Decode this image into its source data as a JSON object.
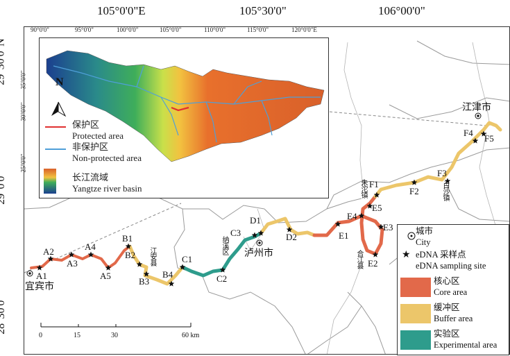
{
  "coords": {
    "top": [
      "105°0'0\"E",
      "105°30'0\"",
      "106°00'0\""
    ],
    "left": [
      "29°30'0\"N",
      "29°0'0\"",
      "28°30'0\""
    ]
  },
  "inset": {
    "lon_labels": [
      "90°0'0\"",
      "95°0'0\"",
      "100°0'0\"",
      "105°0'0\"",
      "110°0'0\"",
      "115°0'0\"",
      "120°0'0\"E"
    ],
    "lat_labels": [
      "35°0'0\"",
      "30°0'0\"",
      "25°0'0\""
    ],
    "north": "N",
    "legend": {
      "protected_cn": "保护区",
      "protected_en": "Protected area",
      "nonprotected_cn": "非保护区",
      "nonprotected_en": "Non-protected area",
      "basin_cn": "长江流域",
      "basin_en": "Yangtze river basin"
    }
  },
  "sites": {
    "A1": "A1",
    "A2": "A2",
    "A3": "A3",
    "A4": "A4",
    "A5": "A5",
    "B1": "B1",
    "B2": "B2",
    "B3": "B3",
    "B4": "B4",
    "C1": "C1",
    "C2": "C2",
    "C3": "C3",
    "D1": "D1",
    "D2": "D2",
    "E1": "E1",
    "E2": "E2",
    "E3": "E3",
    "E4": "E4",
    "E5": "E5",
    "F1": "F1",
    "F2": "F2",
    "F3": "F3",
    "F4": "F4",
    "F5": "F5"
  },
  "places": {
    "yibin": "宜宾市",
    "luzhou": "泸州市",
    "jiangjin": "江津市",
    "jiangan": "江安县",
    "naxi": "纳溪区",
    "hejiang": "合江县",
    "zhutuo": "朱沱镇",
    "baisha": "白沙镇"
  },
  "scale": {
    "ticks": [
      "0",
      "15",
      "30",
      "60 km"
    ]
  },
  "legend": {
    "city_cn": "城市",
    "city_en": "City",
    "edna_cn": "eDNA 采样点",
    "edna_en": "eDNA  sampling site",
    "core_cn": "核心区",
    "core_en": "Core area",
    "buffer_cn": "缓冲区",
    "buffer_en": "Buffer area",
    "exp_cn": "实验区",
    "exp_en": "Experimental area"
  },
  "colors": {
    "core": "#e2694a",
    "buffer": "#ecc66a",
    "experimental": "#2e9c8c",
    "boundary": "#9a9a9a",
    "protected_line": "#e03030",
    "nonprotected_line": "#4f9fd8"
  }
}
